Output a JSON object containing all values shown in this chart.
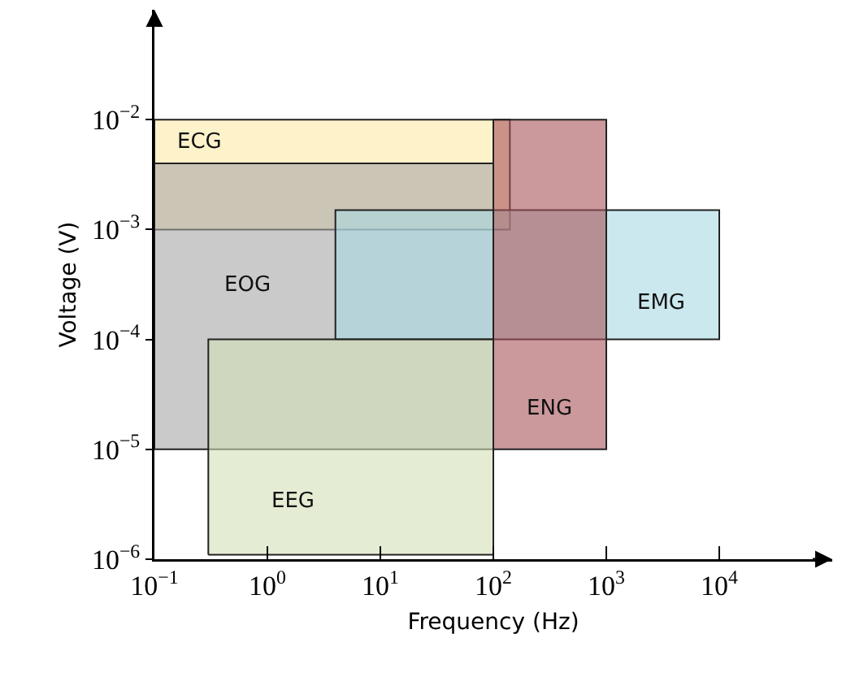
{
  "chart_data": {
    "type": "area",
    "xlabel": "Frequency (Hz)",
    "ylabel": "Voltage (V)",
    "log": "xy",
    "legend": false,
    "grid": false,
    "xlim": [
      0.1,
      100000
    ],
    "ylim": [
      1e-06,
      0.1
    ],
    "xticks": [
      {
        "value": 0.1,
        "label": "10$^{−1}$"
      },
      {
        "value": 1,
        "label": "10$^{0}$"
      },
      {
        "value": 10,
        "label": "10$^{1}$"
      },
      {
        "value": 100,
        "label": "10$^{2}$"
      },
      {
        "value": 1000,
        "label": "10$^{3}$"
      },
      {
        "value": 10000,
        "label": "10$^{4}$"
      }
    ],
    "yticks": [
      {
        "value": 1e-06,
        "label": "10$^{−6}$"
      },
      {
        "value": 1e-05,
        "label": "10$^{−5}$"
      },
      {
        "value": 0.0001,
        "label": "10$^{−4}$"
      },
      {
        "value": 0.001,
        "label": "10$^{−3}$"
      },
      {
        "value": 0.01,
        "label": "10$^{−2}$"
      }
    ],
    "series": [
      {
        "name": "ECG",
        "color": "#fde9a8",
        "x": [
          0.1,
          140,
          140,
          0.1,
          0.1
        ],
        "values": [
          0.001,
          0.001,
          0.01,
          0.01,
          0.001
        ]
      },
      {
        "name": "EOG",
        "color": "#a6a6a6",
        "x": [
          0.1,
          100,
          100,
          0.1,
          0.1
        ],
        "values": [
          1e-05,
          1e-05,
          0.004,
          0.004,
          1e-05
        ]
      },
      {
        "name": "EMG",
        "color": "#a9d9e2",
        "x": [
          4,
          10000,
          10000,
          4,
          4
        ],
        "values": [
          0.0001,
          0.0001,
          0.0015,
          0.0015,
          0.0001
        ]
      },
      {
        "name": "ENG",
        "color": "#a8545a",
        "x": [
          100,
          1000,
          1000,
          100,
          100
        ],
        "values": [
          1e-05,
          1e-05,
          0.01,
          0.01,
          1e-05
        ]
      },
      {
        "name": "EEG",
        "color": "#d3e0b8",
        "x": [
          0.3,
          100,
          100,
          0.3,
          0.3
        ],
        "values": [
          1.1e-06,
          1.1e-06,
          0.0001,
          0.0001,
          1.1e-06
        ]
      }
    ]
  }
}
